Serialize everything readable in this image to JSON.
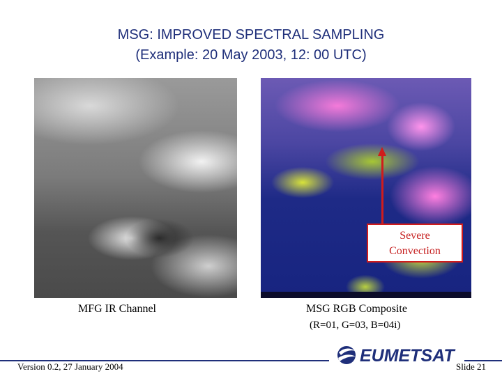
{
  "slide": {
    "title_line1": "MSG: IMPROVED SPECTRAL SAMPLING",
    "title_line2": "(Example: 20 May 2003, 12: 00 UTC)"
  },
  "images": {
    "left": {
      "caption": "MFG IR Channel"
    },
    "right": {
      "caption_line1": "MSG RGB Composite",
      "caption_line2": "(R=01, G=03, B=04i)"
    }
  },
  "annotation": {
    "line1": "Severe",
    "line2": "Convection",
    "color": "#d01c1c"
  },
  "footer": {
    "version": "Version 0.2, 27 January 2004",
    "slide_number": "Slide 21",
    "logo_text": "EUMETSAT"
  },
  "colors": {
    "title": "#1f2f7a",
    "logo": "#1f2f7a"
  }
}
